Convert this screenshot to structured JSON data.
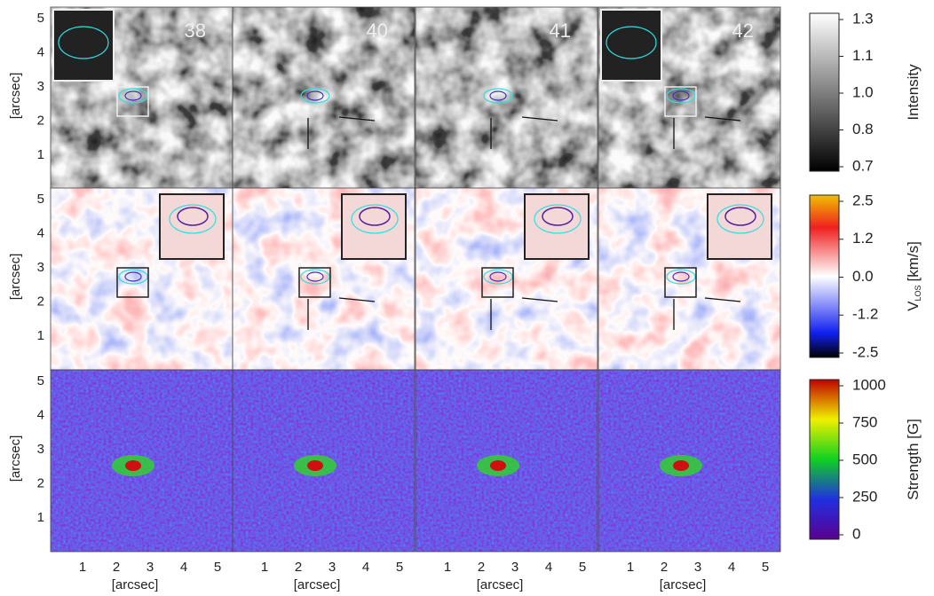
{
  "frames": [
    "38",
    "40",
    "41",
    "42"
  ],
  "y_axis": {
    "label": "[arcsec]",
    "ticks": [
      "1",
      "2",
      "3",
      "4",
      "5"
    ]
  },
  "x_axis": {
    "label": "[arcsec]",
    "ticks": [
      "1",
      "2",
      "3",
      "4",
      "5"
    ]
  },
  "colorbars": [
    {
      "title": "Intensity",
      "ticks": [
        "1.3",
        "1.1",
        "1.0",
        "0.8",
        "0.7"
      ]
    },
    {
      "title": "V",
      "title_sub": "LOS",
      "title_unit": "[km/s]",
      "ticks": [
        "2.5",
        "1.2",
        "0.0",
        "-1.2",
        "-2.5"
      ]
    },
    {
      "title": "Strength [G]",
      "ticks": [
        "1000",
        "750",
        "500",
        "250",
        "0"
      ]
    }
  ]
}
